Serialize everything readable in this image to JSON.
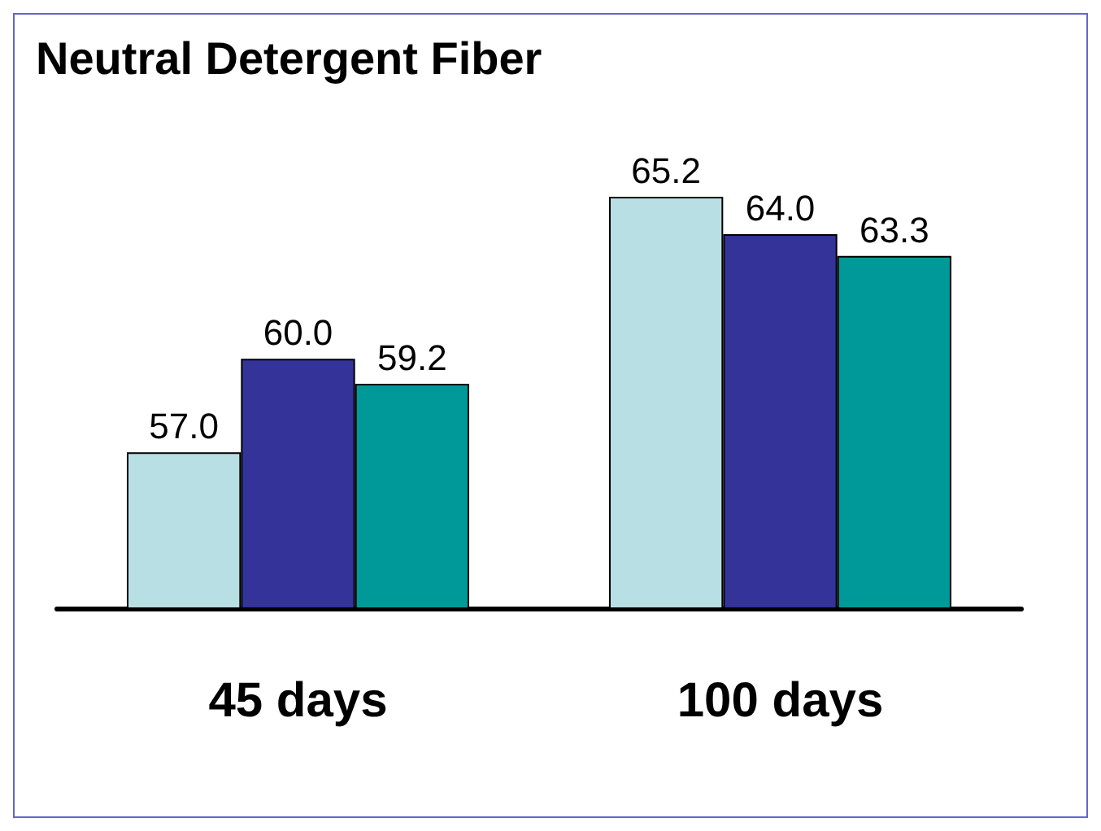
{
  "chart_data": {
    "type": "bar",
    "title": "Neutral Detergent Fiber",
    "categories": [
      "45 days",
      "100 days"
    ],
    "series": [
      {
        "color": "#b8dfe3",
        "values": [
          57.0,
          65.2
        ],
        "value_labels": [
          "57.0",
          "65.2"
        ]
      },
      {
        "color": "#333399",
        "values": [
          60.0,
          64.0
        ],
        "value_labels": [
          "60.0",
          "64.0"
        ]
      },
      {
        "color": "#009999",
        "values": [
          59.2,
          63.3
        ],
        "value_labels": [
          "59.2",
          "63.3"
        ]
      }
    ],
    "ylim": [
      52,
      65.2
    ],
    "tick_labels": "x"
  }
}
